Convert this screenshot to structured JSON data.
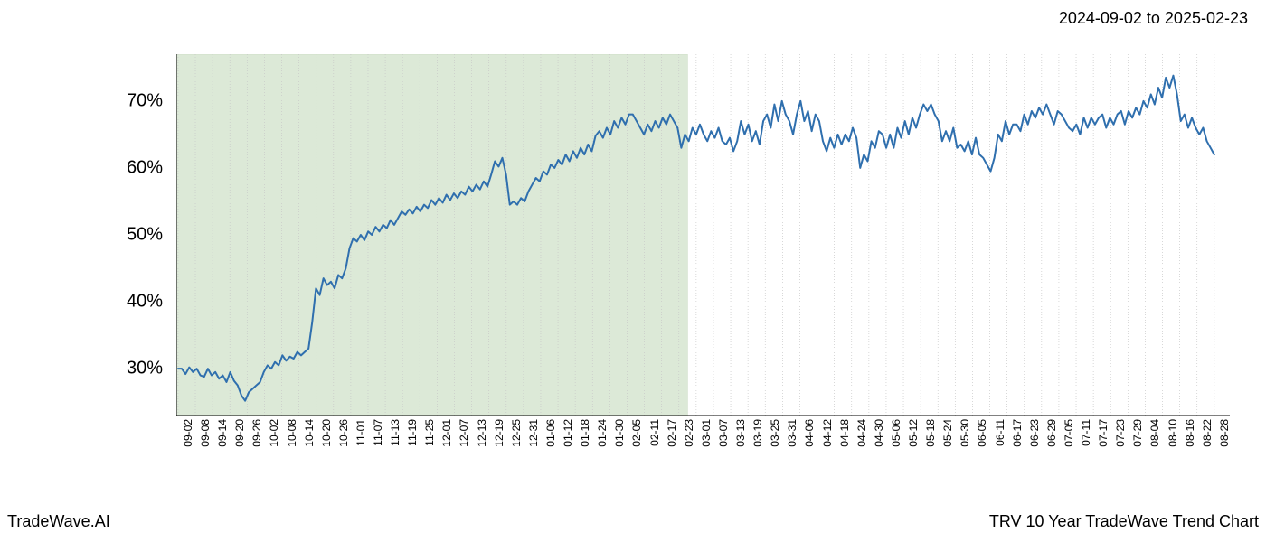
{
  "date_range": "2024-09-02 to 2025-02-23",
  "footer_left": "TradeWave.AI",
  "footer_right": "TRV 10 Year TradeWave Trend Chart",
  "chart": {
    "type": "line",
    "background_color": "#ffffff",
    "line_color": "#2f6fae",
    "line_width": 2,
    "highlight_fill": "#d6e5d0",
    "highlight_opacity": 0.85,
    "highlight_border_color": "#c4d6bb",
    "gridline_color": "#c8c8c8",
    "gridline_dash": "1,2",
    "spine_color": "#000000",
    "ylim": [
      23,
      77
    ],
    "y_ticks": [
      30,
      40,
      50,
      60,
      70
    ],
    "y_tick_labels": [
      "30%",
      "40%",
      "50%",
      "60%",
      "70%"
    ],
    "y_tick_fontsize": 20,
    "x_tick_fontsize": 12,
    "x_tick_rotation": -90,
    "highlight_range": [
      "09-02",
      "02-23"
    ],
    "x_labels": [
      "09-02",
      "09-08",
      "09-14",
      "09-20",
      "09-26",
      "10-02",
      "10-08",
      "10-14",
      "10-20",
      "10-26",
      "11-01",
      "11-07",
      "11-13",
      "11-19",
      "11-25",
      "12-01",
      "12-07",
      "12-13",
      "12-19",
      "12-25",
      "12-31",
      "01-06",
      "01-12",
      "01-18",
      "01-24",
      "01-30",
      "02-05",
      "02-11",
      "02-17",
      "02-23",
      "03-01",
      "03-07",
      "03-13",
      "03-19",
      "03-25",
      "03-31",
      "04-06",
      "04-12",
      "04-18",
      "04-24",
      "04-30",
      "05-06",
      "05-12",
      "05-18",
      "05-24",
      "05-30",
      "06-05",
      "06-11",
      "06-17",
      "06-23",
      "06-29",
      "07-05",
      "07-11",
      "07-17",
      "07-23",
      "07-29",
      "08-04",
      "08-10",
      "08-16",
      "08-22",
      "08-28"
    ],
    "series": [
      30,
      30,
      29.2,
      30.2,
      29.5,
      30,
      29,
      28.8,
      30,
      29,
      29.5,
      28.5,
      29,
      28,
      29.5,
      28.2,
      27.5,
      26,
      25.2,
      26.5,
      27,
      27.5,
      28,
      29.5,
      30.5,
      30,
      31,
      30.5,
      32,
      31.2,
      31.8,
      31.5,
      32.5,
      32,
      32.5,
      33,
      37,
      42,
      41,
      43.5,
      42.5,
      43,
      42,
      44,
      43.5,
      45,
      48,
      49.5,
      49,
      50,
      49.2,
      50.5,
      50,
      51.2,
      50.5,
      51.5,
      51,
      52.2,
      51.5,
      52.5,
      53.5,
      53,
      53.8,
      53.2,
      54.2,
      53.5,
      54.5,
      54,
      55.2,
      54.5,
      55.5,
      54.8,
      56,
      55.2,
      56.2,
      55.5,
      56.5,
      56,
      57.2,
      56.5,
      57.5,
      56.8,
      58,
      57.2,
      59,
      61,
      60.2,
      61.5,
      59,
      54.5,
      55,
      54.5,
      55.5,
      55,
      56.5,
      57.5,
      58.5,
      58,
      59.5,
      59,
      60.5,
      60,
      61.2,
      60.5,
      62,
      61,
      62.5,
      61.5,
      63,
      62,
      63.5,
      62.5,
      64.8,
      65.5,
      64.5,
      66,
      65,
      67,
      66,
      67.5,
      66.5,
      68,
      68,
      67,
      66,
      65,
      66.5,
      65.5,
      67,
      66,
      67.5,
      66.5,
      68,
      67,
      66,
      63,
      65,
      64,
      66,
      65,
      66.5,
      65,
      64,
      65.5,
      64.5,
      66,
      64,
      63.5,
      64.5,
      62.5,
      64,
      67,
      65,
      66.5,
      64,
      65.5,
      63.5,
      67,
      68,
      66,
      69.5,
      67,
      70,
      68,
      67,
      65,
      68,
      70,
      67,
      68.5,
      65.5,
      68,
      67,
      64,
      62.5,
      64.5,
      63,
      65,
      63.5,
      65,
      64,
      66,
      64.5,
      60,
      62,
      61,
      64,
      63,
      65.5,
      65,
      63,
      65,
      63,
      66,
      64.5,
      67,
      65,
      67.5,
      66,
      68,
      69.5,
      68.5,
      69.5,
      68,
      67,
      64,
      65.5,
      64,
      66,
      63,
      63.5,
      62.5,
      64,
      62,
      64.5,
      62,
      61.5,
      60.5,
      59.5,
      61.5,
      65,
      64,
      67,
      65,
      66.5,
      66.5,
      65.5,
      68,
      66.5,
      68.5,
      67.5,
      69,
      68,
      69.5,
      68,
      66.5,
      68.5,
      68,
      67,
      66,
      65.5,
      66.5,
      65,
      67.5,
      66,
      67.5,
      66.5,
      67.5,
      68,
      66,
      67.5,
      66.5,
      68,
      68.5,
      66.5,
      68.5,
      67.5,
      69,
      68,
      70,
      69,
      71,
      69.5,
      72,
      70.5,
      73.5,
      72,
      73.8,
      71,
      67,
      68,
      66,
      67.5,
      66,
      65,
      66,
      64,
      63,
      62
    ]
  }
}
